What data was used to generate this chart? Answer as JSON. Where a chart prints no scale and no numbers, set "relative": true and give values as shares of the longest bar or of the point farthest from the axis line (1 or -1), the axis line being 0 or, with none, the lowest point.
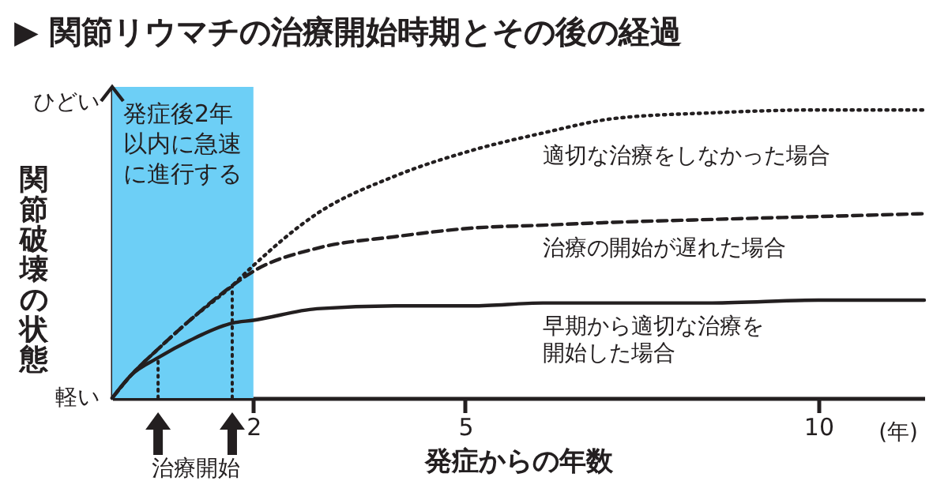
{
  "chart_data": {
    "type": "line",
    "title": "▶ 関節リウマチの治療開始時期とその後の経過",
    "xlabel": "発症からの年数",
    "ylabel": "関節破壊の状態",
    "relative": true,
    "x": [
      0,
      0.27,
      0.65,
      1.1,
      1.7,
      2,
      2.9,
      4,
      5.1,
      6.1,
      7.1,
      8.5,
      10,
      11.5
    ],
    "xlim": [
      0,
      11.5
    ],
    "xticks": [
      2,
      5,
      10
    ],
    "marker": "none",
    "series": [
      {
        "name": "適切な治療をしなかった場合",
        "color": "#231f20",
        "line_style": "dotted",
        "values": [
          0,
          0.08,
          0.17,
          0.27,
          0.39,
          0.46,
          0.64,
          0.77,
          0.86,
          0.92,
          0.97,
          0.99,
          1,
          1
        ]
      },
      {
        "name": "治療の開始が遅れた場合",
        "color": "#231f20",
        "line_style": "dashed",
        "values": [
          0,
          0.08,
          0.17,
          0.27,
          0.39,
          0.44,
          0.52,
          0.56,
          0.59,
          0.6,
          0.61,
          0.62,
          0.63,
          0.64
        ]
      },
      {
        "name": "早期から適切な治療を開始した場合",
        "color": "#231f20",
        "line_style": "solid",
        "values": [
          0,
          0.08,
          0.14,
          0.2,
          0.26,
          0.27,
          0.31,
          0.32,
          0.32,
          0.33,
          0.33,
          0.33,
          0.34,
          0.34
        ]
      }
    ],
    "bands": [
      {
        "axis": "x",
        "from": 0,
        "to": 2,
        "label": "発症後2年以内に急速に進行する",
        "color": "#6dcff6"
      }
    ],
    "ref_lines": [
      {
        "axis": "x",
        "value": 0.65,
        "line_style": "dotted",
        "color": "#231f20"
      },
      {
        "axis": "x",
        "value": 1.7,
        "line_style": "dotted",
        "color": "#231f20"
      }
    ],
    "annotations": [
      "ひどい",
      "軽い",
      "(年)",
      "治療開始"
    ]
  }
}
